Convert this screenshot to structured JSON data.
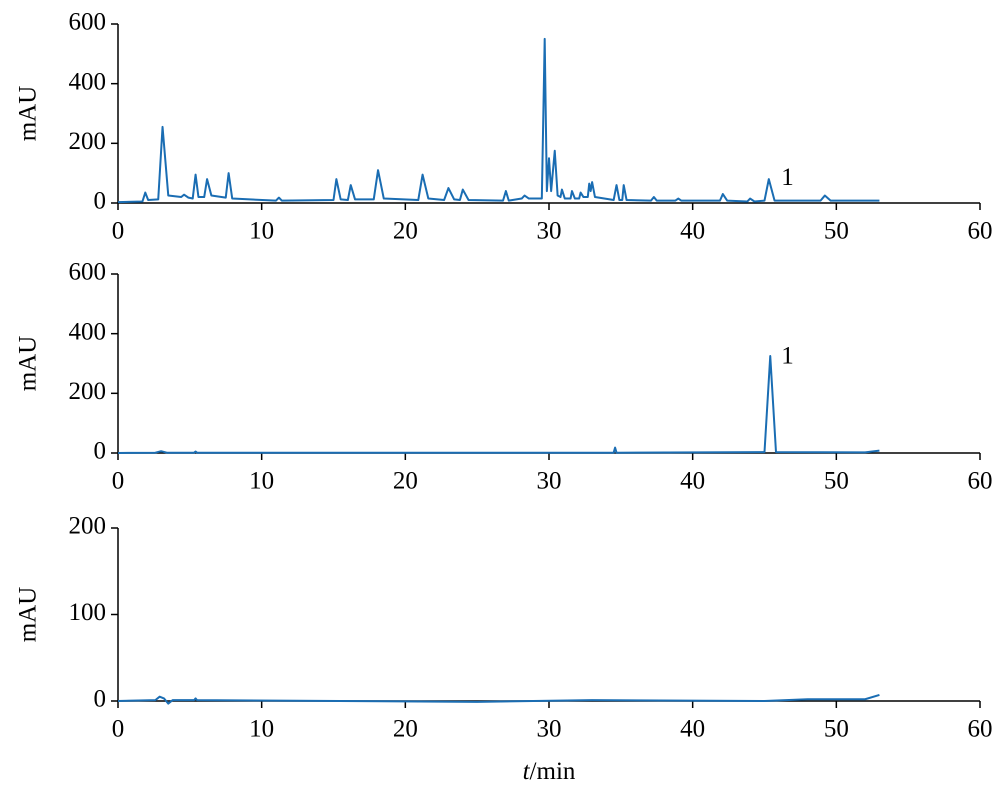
{
  "chart_data": [
    {
      "type": "line",
      "ylabel": "mAU",
      "color": "#1a6db3",
      "x": [
        0,
        1.7,
        1.9,
        2.1,
        2.8,
        3.1,
        3.5,
        4.4,
        4.6,
        4.9,
        5.2,
        5.4,
        5.6,
        6.0,
        6.2,
        6.5,
        7.5,
        7.7,
        7.95,
        11.0,
        11.2,
        11.4,
        15.0,
        15.2,
        15.5,
        16.0,
        16.2,
        16.5,
        17.8,
        18.1,
        18.5,
        20.9,
        21.2,
        21.6,
        22.7,
        23.0,
        23.4,
        23.8,
        24.0,
        24.4,
        26.8,
        27.0,
        27.2,
        28.1,
        28.3,
        28.6,
        29.5,
        29.7,
        29.85,
        30.0,
        30.15,
        30.4,
        30.6,
        30.8,
        30.9,
        31.1,
        31.5,
        31.6,
        31.8,
        32.1,
        32.2,
        32.4,
        32.7,
        32.8,
        32.9,
        33.0,
        33.2,
        34.5,
        34.7,
        34.9,
        35.1,
        35.2,
        35.4,
        37.1,
        37.3,
        37.5,
        38.8,
        39.0,
        39.2,
        41.9,
        42.1,
        42.4,
        43.8,
        44.0,
        44.3,
        45.0,
        45.3,
        45.7,
        48.9,
        49.2,
        49.6,
        53
      ],
      "values": [
        3,
        5,
        35,
        10,
        12,
        255,
        25,
        20,
        28,
        18,
        15,
        95,
        20,
        20,
        80,
        25,
        18,
        100,
        15,
        8,
        18,
        8,
        10,
        80,
        12,
        10,
        60,
        12,
        12,
        110,
        15,
        10,
        95,
        15,
        10,
        50,
        12,
        10,
        45,
        10,
        8,
        40,
        8,
        15,
        25,
        15,
        15,
        550,
        40,
        150,
        40,
        175,
        25,
        20,
        45,
        15,
        15,
        40,
        15,
        15,
        35,
        20,
        20,
        65,
        40,
        70,
        20,
        10,
        60,
        10,
        10,
        60,
        10,
        8,
        20,
        8,
        8,
        15,
        8,
        8,
        30,
        8,
        5,
        15,
        5,
        8,
        80,
        8,
        8,
        25,
        8,
        8
      ],
      "xlim": [
        0,
        60
      ],
      "xticks": [
        0,
        10,
        20,
        30,
        40,
        50,
        60
      ],
      "ylim": [
        0,
        600
      ],
      "yticks": [
        0,
        200,
        400,
        600
      ],
      "annotations": [
        {
          "text": "1",
          "x": 46.6,
          "y": 80
        }
      ]
    },
    {
      "type": "line",
      "ylabel": "mAU",
      "color": "#1a6db3",
      "x": [
        0,
        2.6,
        3.0,
        3.4,
        5.3,
        5.4,
        5.5,
        34.5,
        34.6,
        34.7,
        45.0,
        45.4,
        45.8,
        52,
        53
      ],
      "values": [
        0,
        1,
        6,
        1,
        1,
        5,
        1,
        1,
        18,
        1,
        3,
        325,
        3,
        2,
        8
      ],
      "xlim": [
        0,
        60
      ],
      "xticks": [
        0,
        10,
        20,
        30,
        40,
        50,
        60
      ],
      "ylim": [
        0,
        600
      ],
      "yticks": [
        0,
        200,
        400,
        600
      ],
      "annotations": [
        {
          "text": "1",
          "x": 46.6,
          "y": 320
        }
      ]
    },
    {
      "type": "line",
      "ylabel": "mAU",
      "xlabel": "t/min",
      "color": "#1a6db3",
      "x": [
        0,
        2.6,
        2.9,
        3.2,
        3.5,
        3.8,
        5.3,
        5.4,
        5.5,
        25,
        33,
        45,
        48,
        52,
        53
      ],
      "values": [
        0,
        1,
        5,
        3,
        -3,
        1,
        1,
        3,
        1,
        -1,
        1,
        0,
        2,
        2,
        7
      ],
      "xlim": [
        0,
        60
      ],
      "xticks": [
        0,
        10,
        20,
        30,
        40,
        50,
        60
      ],
      "ylim": [
        0,
        200
      ],
      "yticks": [
        0,
        100,
        200
      ]
    }
  ]
}
